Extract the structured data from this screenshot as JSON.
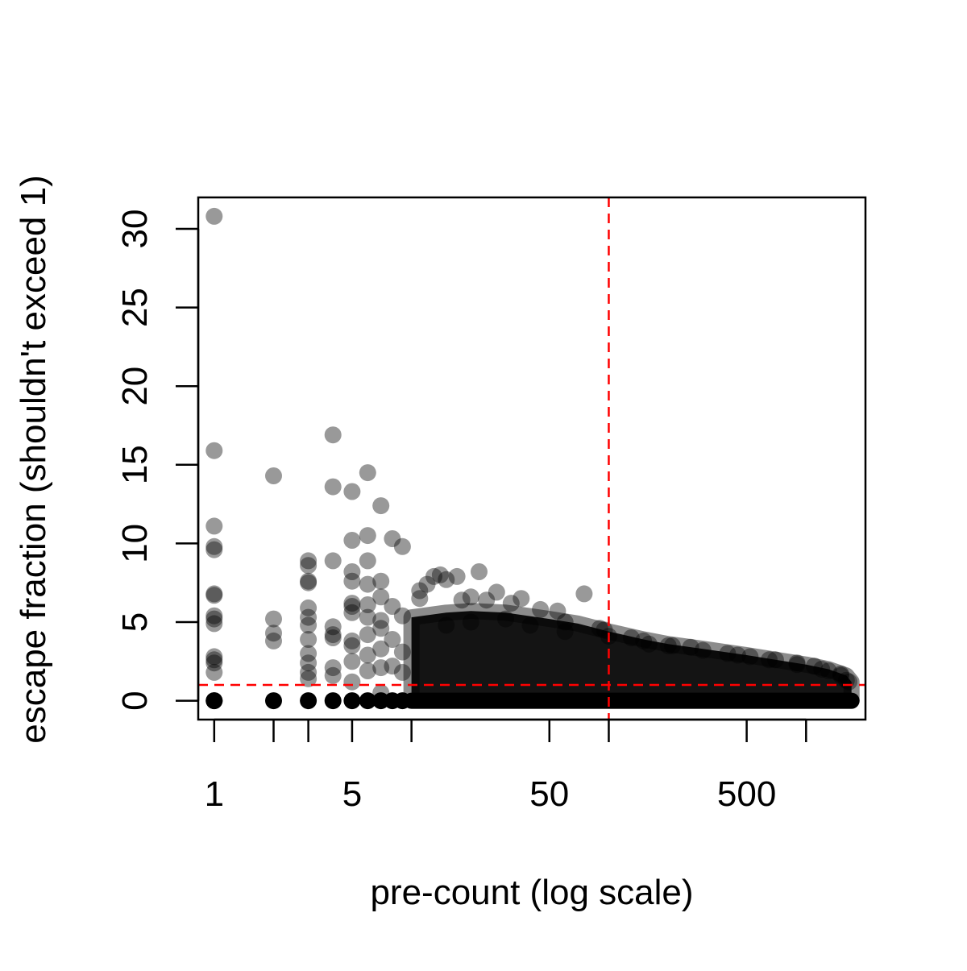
{
  "chart_data": {
    "type": "scatter",
    "title": "",
    "xlabel": "pre-count (log scale)",
    "ylabel": "escape fraction (shouldn't exceed 1)",
    "x_scale": "log",
    "xlim": [
      0.83,
      2000
    ],
    "ylim": [
      -1.2,
      32
    ],
    "x_ticks": [
      1,
      2,
      3,
      5,
      10,
      50,
      100,
      500,
      1000
    ],
    "x_tick_labels": [
      {
        "value": 1,
        "label": "1"
      },
      {
        "value": 5,
        "label": "5"
      },
      {
        "value": 50,
        "label": "50"
      },
      {
        "value": 500,
        "label": "500"
      }
    ],
    "y_ticks": [
      {
        "value": 0,
        "label": "0"
      },
      {
        "value": 5,
        "label": "5"
      },
      {
        "value": 10,
        "label": "10"
      },
      {
        "value": 15,
        "label": "15"
      },
      {
        "value": 20,
        "label": "20"
      },
      {
        "value": 25,
        "label": "25"
      },
      {
        "value": 30,
        "label": "30"
      }
    ],
    "grid": false,
    "reference_lines": [
      {
        "orientation": "vertical",
        "value": 100,
        "color": "#ff0000",
        "style": "dashed"
      },
      {
        "orientation": "horizontal",
        "value": 1,
        "color": "#ff0000",
        "style": "dashed"
      }
    ],
    "point_color": "#000000",
    "point_alpha": 0.4,
    "series": [
      {
        "points": [
          [
            1,
            30.8
          ],
          [
            1,
            15.9
          ],
          [
            1,
            11.1
          ],
          [
            1,
            9.8
          ],
          [
            1,
            9.6
          ],
          [
            1,
            6.8
          ],
          [
            1,
            6.7
          ],
          [
            1,
            5.4
          ],
          [
            1,
            5.2
          ],
          [
            1,
            4.9
          ],
          [
            1,
            2.8
          ],
          [
            1,
            2.6
          ],
          [
            1,
            2.4
          ],
          [
            1,
            1.8
          ],
          [
            1,
            0
          ],
          [
            1,
            0
          ],
          [
            2,
            14.3
          ],
          [
            2,
            5.2
          ],
          [
            2,
            4.3
          ],
          [
            2,
            3.8
          ],
          [
            2,
            0
          ],
          [
            3,
            8.9
          ],
          [
            3,
            8.6
          ],
          [
            3,
            7.6
          ],
          [
            3,
            7.5
          ],
          [
            3,
            5.9
          ],
          [
            3,
            5.3
          ],
          [
            3,
            4.8
          ],
          [
            3,
            3.9
          ],
          [
            3,
            3.0
          ],
          [
            3,
            2.4
          ],
          [
            3,
            1.8
          ],
          [
            3,
            1.4
          ],
          [
            3,
            0
          ],
          [
            4,
            16.9
          ],
          [
            4,
            13.6
          ],
          [
            4,
            8.9
          ],
          [
            4,
            4.7
          ],
          [
            4,
            4.2
          ],
          [
            4,
            4.0
          ],
          [
            4,
            2.1
          ],
          [
            4,
            1.6
          ],
          [
            4,
            0
          ],
          [
            5,
            13.3
          ],
          [
            5,
            10.2
          ],
          [
            5,
            8.2
          ],
          [
            5,
            7.6
          ],
          [
            5,
            6.2
          ],
          [
            5,
            6.0
          ],
          [
            5,
            5.6
          ],
          [
            5,
            3.8
          ],
          [
            5,
            3.5
          ],
          [
            5,
            2.5
          ],
          [
            5,
            1.2
          ],
          [
            5,
            0
          ],
          [
            6,
            14.5
          ],
          [
            6,
            10.5
          ],
          [
            6,
            8.9
          ],
          [
            6,
            7.4
          ],
          [
            6,
            6.1
          ],
          [
            6,
            5.3
          ],
          [
            6,
            4.2
          ],
          [
            6,
            2.9
          ],
          [
            6,
            1.9
          ],
          [
            6,
            0
          ],
          [
            7,
            12.4
          ],
          [
            7,
            7.6
          ],
          [
            7,
            6.6
          ],
          [
            7,
            5.1
          ],
          [
            7,
            4.6
          ],
          [
            7,
            3.3
          ],
          [
            7,
            2.1
          ],
          [
            7,
            0.5
          ],
          [
            7,
            0
          ],
          [
            8,
            10.3
          ],
          [
            8,
            6.0
          ],
          [
            8,
            3.9
          ],
          [
            8,
            2.2
          ],
          [
            8,
            0
          ],
          [
            9,
            9.8
          ],
          [
            9,
            5.4
          ],
          [
            9,
            3.1
          ],
          [
            9,
            1.8
          ],
          [
            9,
            0
          ],
          [
            11,
            7.0
          ],
          [
            11,
            6.5
          ],
          [
            12,
            7.4
          ],
          [
            13,
            7.9
          ],
          [
            14,
            8.0
          ],
          [
            15,
            7.7
          ],
          [
            17,
            7.9
          ],
          [
            18,
            6.4
          ],
          [
            20,
            6.6
          ],
          [
            22,
            8.2
          ],
          [
            24,
            6.4
          ],
          [
            27,
            6.9
          ],
          [
            32,
            6.2
          ],
          [
            36,
            6.5
          ],
          [
            45,
            5.8
          ],
          [
            55,
            5.7
          ],
          [
            60,
            5.0
          ],
          [
            75,
            6.8
          ],
          [
            90,
            4.6
          ],
          [
            95,
            4.5
          ],
          [
            130,
            4.0
          ],
          [
            160,
            3.6
          ],
          [
            210,
            3.5
          ],
          [
            260,
            3.4
          ],
          [
            400,
            3.0
          ],
          [
            520,
            2.8
          ],
          [
            700,
            2.6
          ],
          [
            900,
            2.4
          ],
          [
            1100,
            2.2
          ],
          [
            1300,
            1.9
          ],
          [
            1500,
            1.6
          ],
          [
            1600,
            1.3
          ],
          [
            1650,
            1.2
          ],
          [
            15,
            4.8
          ],
          [
            20,
            5.0
          ],
          [
            30,
            5.2
          ],
          [
            40,
            4.8
          ],
          [
            60,
            4.4
          ],
          [
            100,
            4.1
          ],
          [
            150,
            3.8
          ],
          [
            200,
            3.5
          ],
          [
            300,
            3.2
          ],
          [
            450,
            2.9
          ],
          [
            650,
            2.6
          ],
          [
            900,
            2.3
          ],
          [
            1200,
            2.0
          ],
          [
            1500,
            1.7
          ]
        ]
      }
    ],
    "dense_band": {
      "x": [
        10,
        15,
        20,
        30,
        50,
        70,
        100,
        150,
        200,
        300,
        500,
        700,
        1000,
        1300,
        1600,
        1700
      ],
      "upper": [
        5.3,
        5.6,
        5.7,
        5.6,
        5.2,
        4.9,
        4.4,
        3.9,
        3.6,
        3.3,
        2.9,
        2.6,
        2.3,
        2.0,
        1.6,
        1.2
      ]
    }
  }
}
